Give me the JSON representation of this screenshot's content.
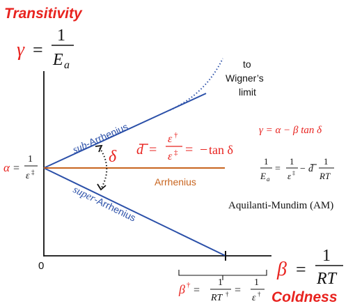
{
  "colors": {
    "red": "#e8231f",
    "blue": "#2a4fa8",
    "orange": "#c8641e",
    "black": "#111111"
  },
  "labels": {
    "transitivity": "Transitivity",
    "coldness": "Coldness",
    "gamma": "γ",
    "beta": "β",
    "equals": "=",
    "one": "1",
    "E": "E",
    "a_sub": "a",
    "RT": "RT",
    "zero": "0",
    "alpha": "α",
    "epsilon": "ε",
    "double_dagger": "‡",
    "dagger": "†",
    "delta": "δ",
    "d": "d",
    "minus": "−",
    "tan_delta": "tan δ",
    "to_wigner": "to",
    "wigner": "Wigner’s",
    "limit": "limit",
    "sub_prefix": "sub",
    "super_prefix": "super",
    "arrhenius_suffix": "-Arrhenius",
    "arrhenius": "Arrhenius",
    "gamma_eq": "γ = α − β tan δ",
    "am_label": "Aquilanti-Mundim (AM)"
  },
  "icons": [
    "dotted-curved-arrow-icon",
    "wigner-dotted-curve-icon"
  ]
}
